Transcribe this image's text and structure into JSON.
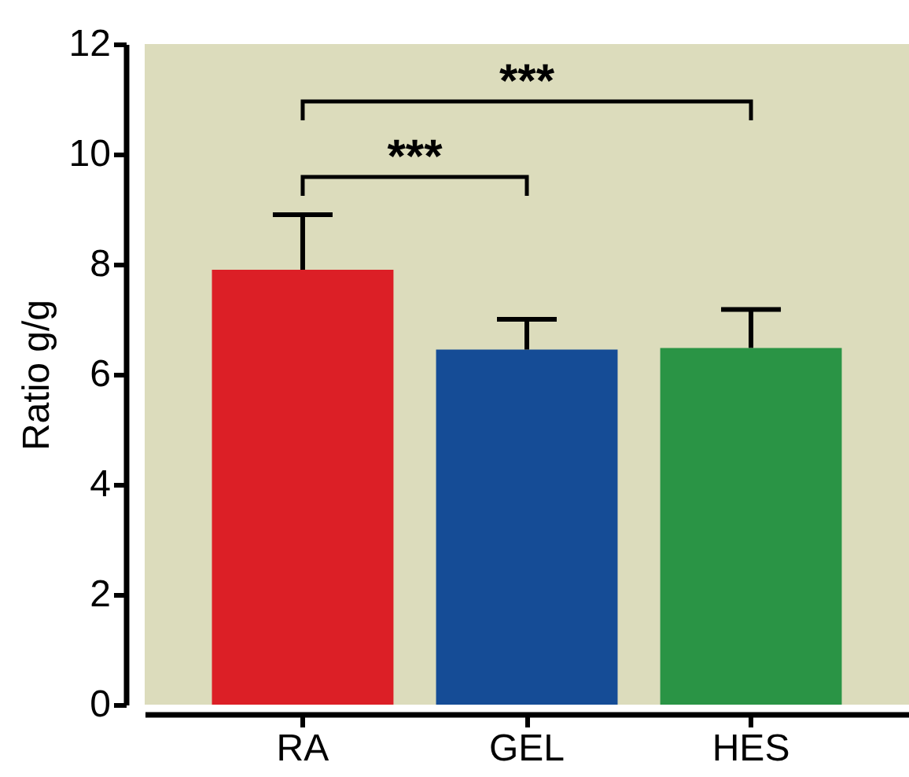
{
  "chart_data": {
    "type": "bar",
    "ylabel": "Ratio g/g",
    "categories": [
      "RA",
      "GEL",
      "HES"
    ],
    "values": [
      7.9,
      6.45,
      6.48
    ],
    "colors": [
      "#dc1f26",
      "#154c96",
      "#2a9445"
    ],
    "errors": [
      1.0,
      0.55,
      0.7
    ],
    "ylim": [
      0,
      12
    ],
    "yticks": [
      0,
      2,
      4,
      6,
      8,
      10,
      12
    ],
    "grid": false,
    "annotations": [
      "***",
      "***"
    ]
  }
}
